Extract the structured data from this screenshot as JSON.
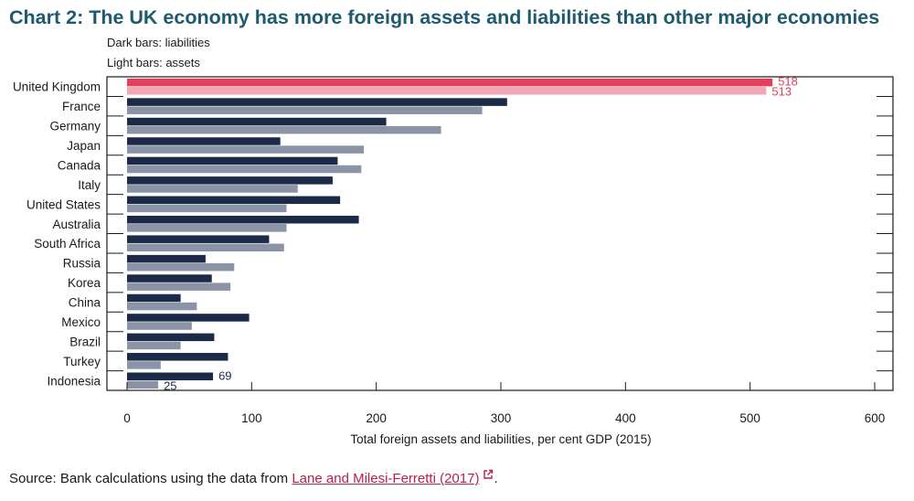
{
  "title": "Chart 2: The UK economy has more foreign assets and liabilities than other major economies",
  "legend": {
    "dark": "Dark bars: liabilities",
    "light": "Light bars: assets"
  },
  "source": {
    "prefix": "Source: Bank calculations using the data from ",
    "link_text": "Lane and Milesi-Ferretti (2017)",
    "suffix": ".",
    "link_icon": "external-link-icon"
  },
  "colors": {
    "liabilities": "#1b2a47",
    "assets": "#8a94a6",
    "uk_liabilities": "#e0405e",
    "uk_assets": "#f2a6b5",
    "title": "#1d5a6e"
  },
  "chart_data": {
    "type": "bar",
    "orientation": "horizontal",
    "categories": [
      "United Kingdom",
      "France",
      "Germany",
      "Japan",
      "Canada",
      "Italy",
      "United States",
      "Australia",
      "South Africa",
      "Russia",
      "Korea",
      "China",
      "Mexico",
      "Brazil",
      "Turkey",
      "Indonesia"
    ],
    "series": [
      {
        "name": "liabilities",
        "values": [
          518,
          305,
          208,
          123,
          169,
          165,
          171,
          186,
          114,
          63,
          68,
          43,
          98,
          70,
          81,
          69
        ]
      },
      {
        "name": "assets",
        "values": [
          513,
          285,
          252,
          190,
          188,
          137,
          128,
          128,
          126,
          86,
          83,
          56,
          52,
          43,
          27,
          25
        ]
      }
    ],
    "data_labels": [
      {
        "category": "United Kingdom",
        "series": "liabilities",
        "text": "518"
      },
      {
        "category": "United Kingdom",
        "series": "assets",
        "text": "513"
      },
      {
        "category": "Indonesia",
        "series": "liabilities",
        "text": "69"
      },
      {
        "category": "Indonesia",
        "series": "assets",
        "text": "25"
      }
    ],
    "xlabel": "Total foreign assets and liabilities, per cent GDP (2015)",
    "xlim": [
      0,
      600
    ],
    "xticks": [
      "0",
      "100",
      "200",
      "300",
      "400",
      "500",
      "600"
    ],
    "grid": false
  }
}
